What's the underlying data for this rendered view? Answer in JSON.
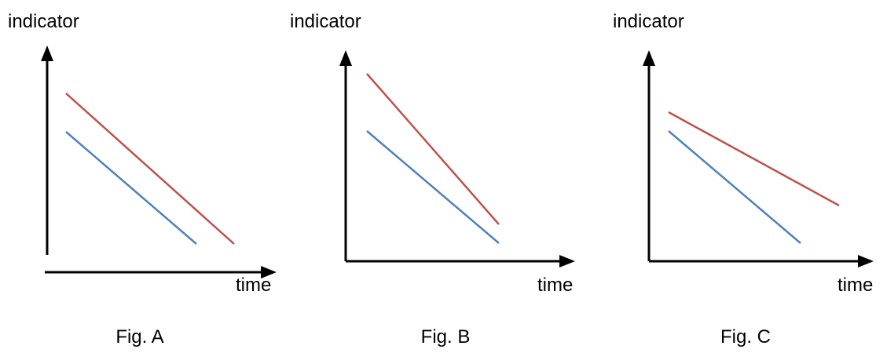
{
  "colors": {
    "red_line": "#c0504d",
    "blue_line": "#4f81bd",
    "axis": "#000000"
  },
  "figures": [
    {
      "caption": "Fig. A",
      "y_axis_label": "indicator",
      "x_axis_label": "time"
    },
    {
      "caption": "Fig. B",
      "y_axis_label": "indicator",
      "x_axis_label": "time"
    },
    {
      "caption": "Fig. C",
      "y_axis_label": "indicator",
      "x_axis_label": "time"
    }
  ]
}
